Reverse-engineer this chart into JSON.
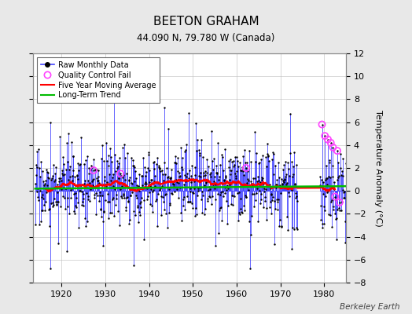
{
  "title": "BEETON GRAHAM",
  "subtitle": "44.090 N, 79.780 W (Canada)",
  "ylabel": "Temperature Anomaly (°C)",
  "watermark": "Berkeley Earth",
  "year_start": 1914,
  "year_end": 1984,
  "ylim": [
    -8,
    12
  ],
  "yticks": [
    -8,
    -6,
    -4,
    -2,
    0,
    2,
    4,
    6,
    8,
    10,
    12
  ],
  "xticks": [
    1920,
    1930,
    1940,
    1950,
    1960,
    1970,
    1980
  ],
  "line_color": "#4444ff",
  "marker_color": "#000000",
  "qc_color": "#ff44ff",
  "moving_avg_color": "#ff0000",
  "trend_color": "#00bb00",
  "background_color": "#e8e8e8",
  "plot_bg_color": "#ffffff",
  "grid_color": "#bbbbbb",
  "seed": 17,
  "data_gap_start": 1974,
  "data_gap_end": 1979
}
